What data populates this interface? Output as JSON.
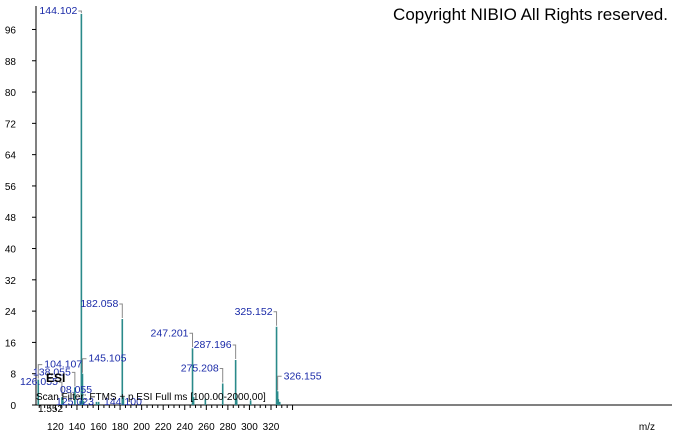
{
  "copyright": "Copyright NIBIO All Rights reserved.",
  "scan_filter": "Scan Filter: FTMS + p ESI Full ms [100.00-2000.00]",
  "ion_mode": "ESI",
  "small_value": "1.552",
  "xlabel": "m/z",
  "chart_data": {
    "type": "bar",
    "xlabel": "m/z",
    "ylabel": "",
    "xlim": [
      102,
      692
    ],
    "ylim": [
      0,
      102
    ],
    "x_ticks": [
      120,
      140,
      160,
      180,
      200,
      220,
      240,
      260,
      280,
      300,
      320
    ],
    "y_ticks": [
      0,
      8,
      16,
      24,
      32,
      40,
      48,
      56,
      64,
      72,
      80,
      88,
      96
    ],
    "bar_color": "#2a8a8a",
    "label_color": "#1a2aa8",
    "labeled_peaks": [
      {
        "mz": 104.107,
        "intensity": 6.5,
        "label": "104.107"
      },
      {
        "mz": 126.055,
        "intensity": 2.0,
        "label": "126.055"
      },
      {
        "mz": 138.055,
        "intensity": 4.5,
        "label": "138.055"
      },
      {
        "mz": 144.102,
        "intensity": 100.0,
        "label": "144.102"
      },
      {
        "mz": 145.105,
        "intensity": 8.0,
        "label": "145.105"
      },
      {
        "mz": 182.058,
        "intensity": 22.0,
        "label": "182.058"
      },
      {
        "mz": 247.201,
        "intensity": 14.5,
        "label": "247.201"
      },
      {
        "mz": 275.208,
        "intensity": 5.5,
        "label": "275.208"
      },
      {
        "mz": 287.196,
        "intensity": 11.5,
        "label": "287.196"
      },
      {
        "mz": 325.152,
        "intensity": 20.0,
        "label": "325.152"
      },
      {
        "mz": 326.155,
        "intensity": 3.5,
        "label": "326.155"
      }
    ],
    "partial_labels": [
      {
        "mz": 125.023,
        "label": "125.023"
      },
      {
        "mz": 144.1,
        "label": "144.100"
      },
      {
        "mz": 108.055,
        "label": "08.055"
      }
    ],
    "minor_peaks": [
      {
        "mz": 127.0,
        "intensity": 1.2
      },
      {
        "mz": 143.0,
        "intensity": 1.0
      },
      {
        "mz": 146.1,
        "intensity": 1.0
      },
      {
        "mz": 158.1,
        "intensity": 0.8
      },
      {
        "mz": 160.1,
        "intensity": 0.8
      },
      {
        "mz": 183.1,
        "intensity": 2.0
      },
      {
        "mz": 248.2,
        "intensity": 2.0
      },
      {
        "mz": 259.1,
        "intensity": 1.5
      },
      {
        "mz": 288.2,
        "intensity": 1.5
      },
      {
        "mz": 301.1,
        "intensity": 1.2
      },
      {
        "mz": 326.8,
        "intensity": 1.5
      },
      {
        "mz": 328.1,
        "intensity": 0.8
      }
    ]
  }
}
